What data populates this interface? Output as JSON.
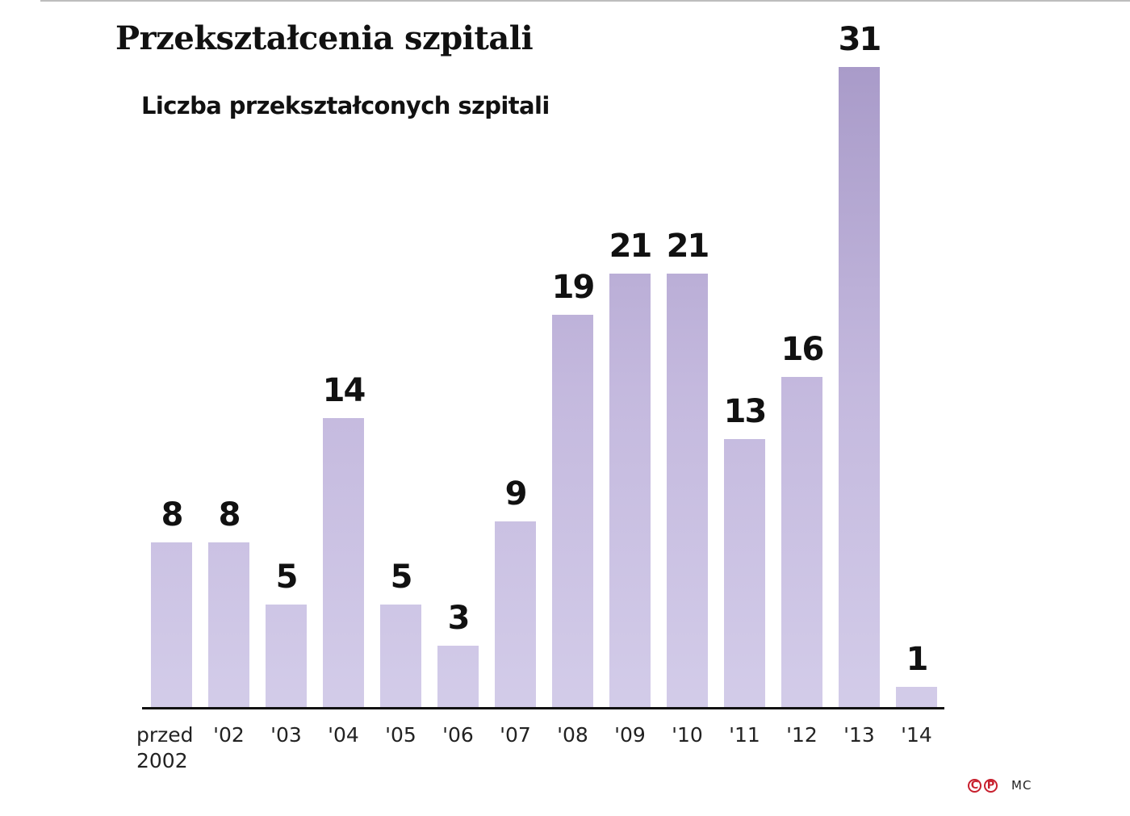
{
  "header": {
    "title": "Przekształcenia szpitali",
    "subtitle": "Liczba przekształconych szpitali"
  },
  "footer": {
    "copyright_symbol": "C",
    "phonogram_symbol": "P",
    "author": "MC"
  },
  "colors": {
    "bar_top": "#a99bc9",
    "bar_bottom": "#d3cce9",
    "axis": "#111111",
    "copyright_red": "#c8202e"
  },
  "chart_data": {
    "type": "bar",
    "title": "Przekształcenia szpitali",
    "subtitle": "Liczba przekształconych szpitali",
    "xlabel": "",
    "ylabel": "",
    "categories": [
      "przed 2002",
      "'02",
      "'03",
      "'04",
      "'05",
      "'06",
      "'07",
      "'08",
      "'09",
      "'10",
      "'11",
      "'12",
      "'13",
      "'14"
    ],
    "category_lines": [
      [
        "przed",
        "2002"
      ],
      [
        "'02"
      ],
      [
        "'03"
      ],
      [
        "'04"
      ],
      [
        "'05"
      ],
      [
        "'06"
      ],
      [
        "'07"
      ],
      [
        "'08"
      ],
      [
        "'09"
      ],
      [
        "'10"
      ],
      [
        "'11"
      ],
      [
        "'12"
      ],
      [
        "'13"
      ],
      [
        "'14"
      ]
    ],
    "values": [
      8,
      8,
      5,
      14,
      5,
      3,
      9,
      19,
      21,
      21,
      13,
      16,
      31,
      1
    ],
    "ylim": [
      0,
      31
    ],
    "grid": false,
    "legend": null,
    "data_labels": true
  }
}
